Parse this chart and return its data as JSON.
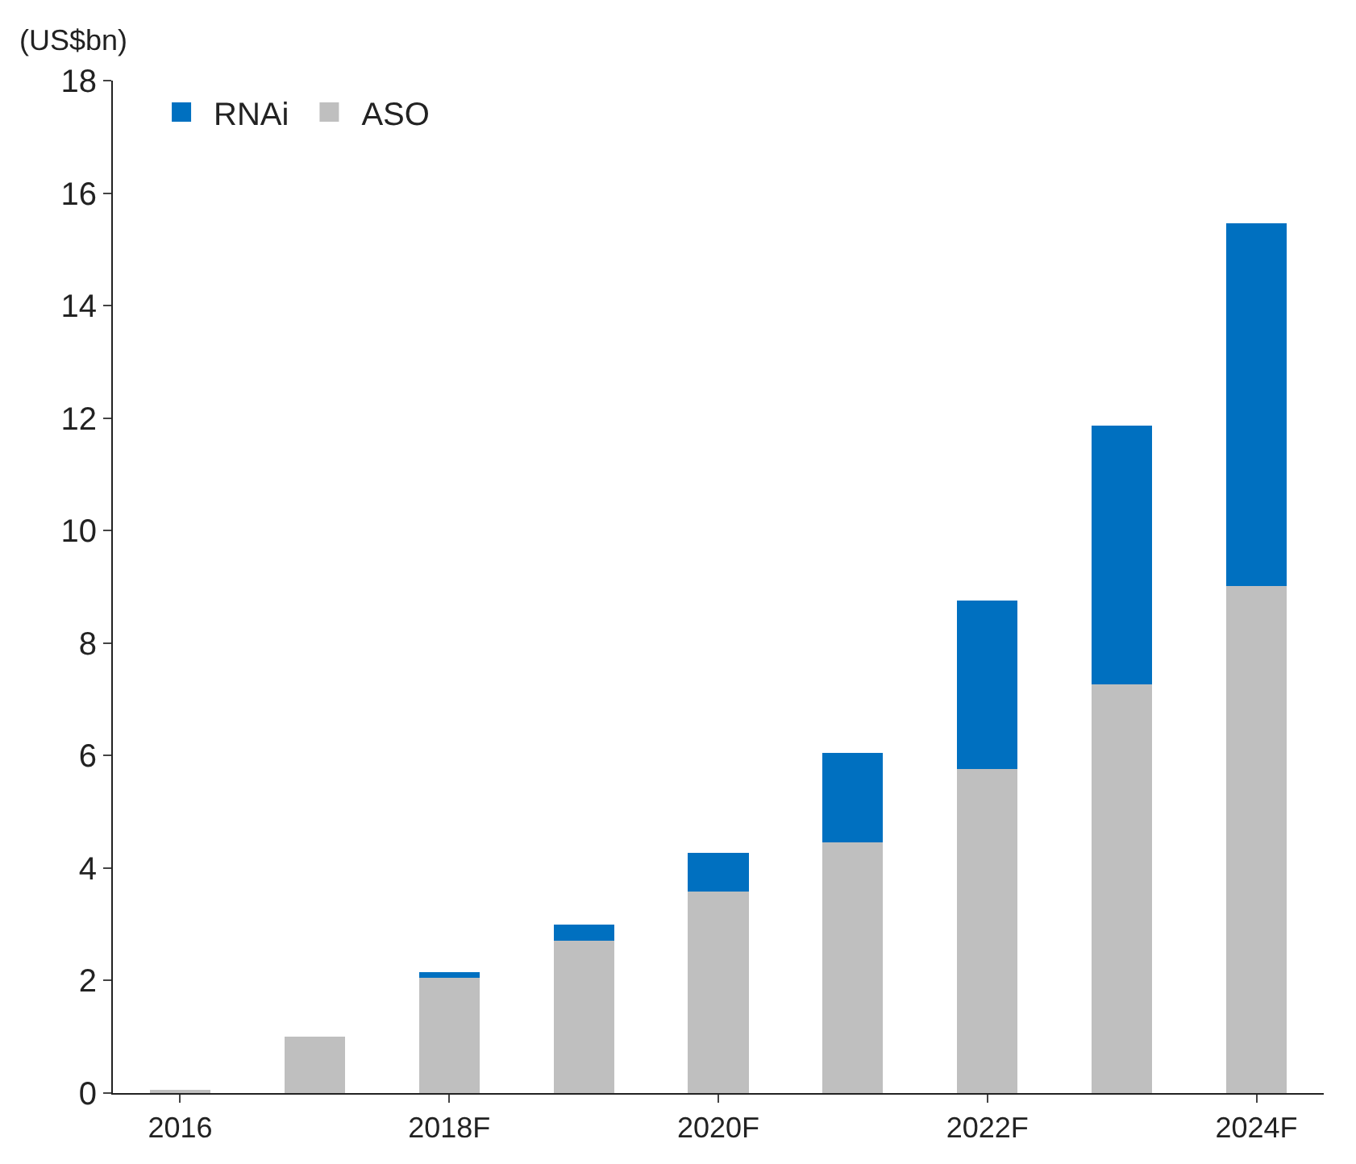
{
  "chart_data": {
    "type": "bar",
    "stacked": true,
    "ylabel": "(US$bn)",
    "categories": [
      "2016",
      null,
      "2018F",
      null,
      "2020F",
      null,
      "2022F",
      null,
      "2024F"
    ],
    "series": [
      {
        "name": "ASO",
        "color": "#bfbfbf",
        "values": [
          0.03,
          1.0,
          2.05,
          2.71,
          3.59,
          4.46,
          5.76,
          7.26,
          9.01
        ]
      },
      {
        "name": "RNAi",
        "color": "#0070c0",
        "values": [
          0,
          0,
          0.1,
          0.29,
          0.68,
          1.59,
          3.0,
          4.6,
          6.46
        ]
      }
    ],
    "ylim": [
      0,
      18
    ],
    "yticks": [
      0,
      2,
      4,
      6,
      8,
      10,
      12,
      14,
      16,
      18
    ],
    "grid": false,
    "legend": "top left"
  }
}
